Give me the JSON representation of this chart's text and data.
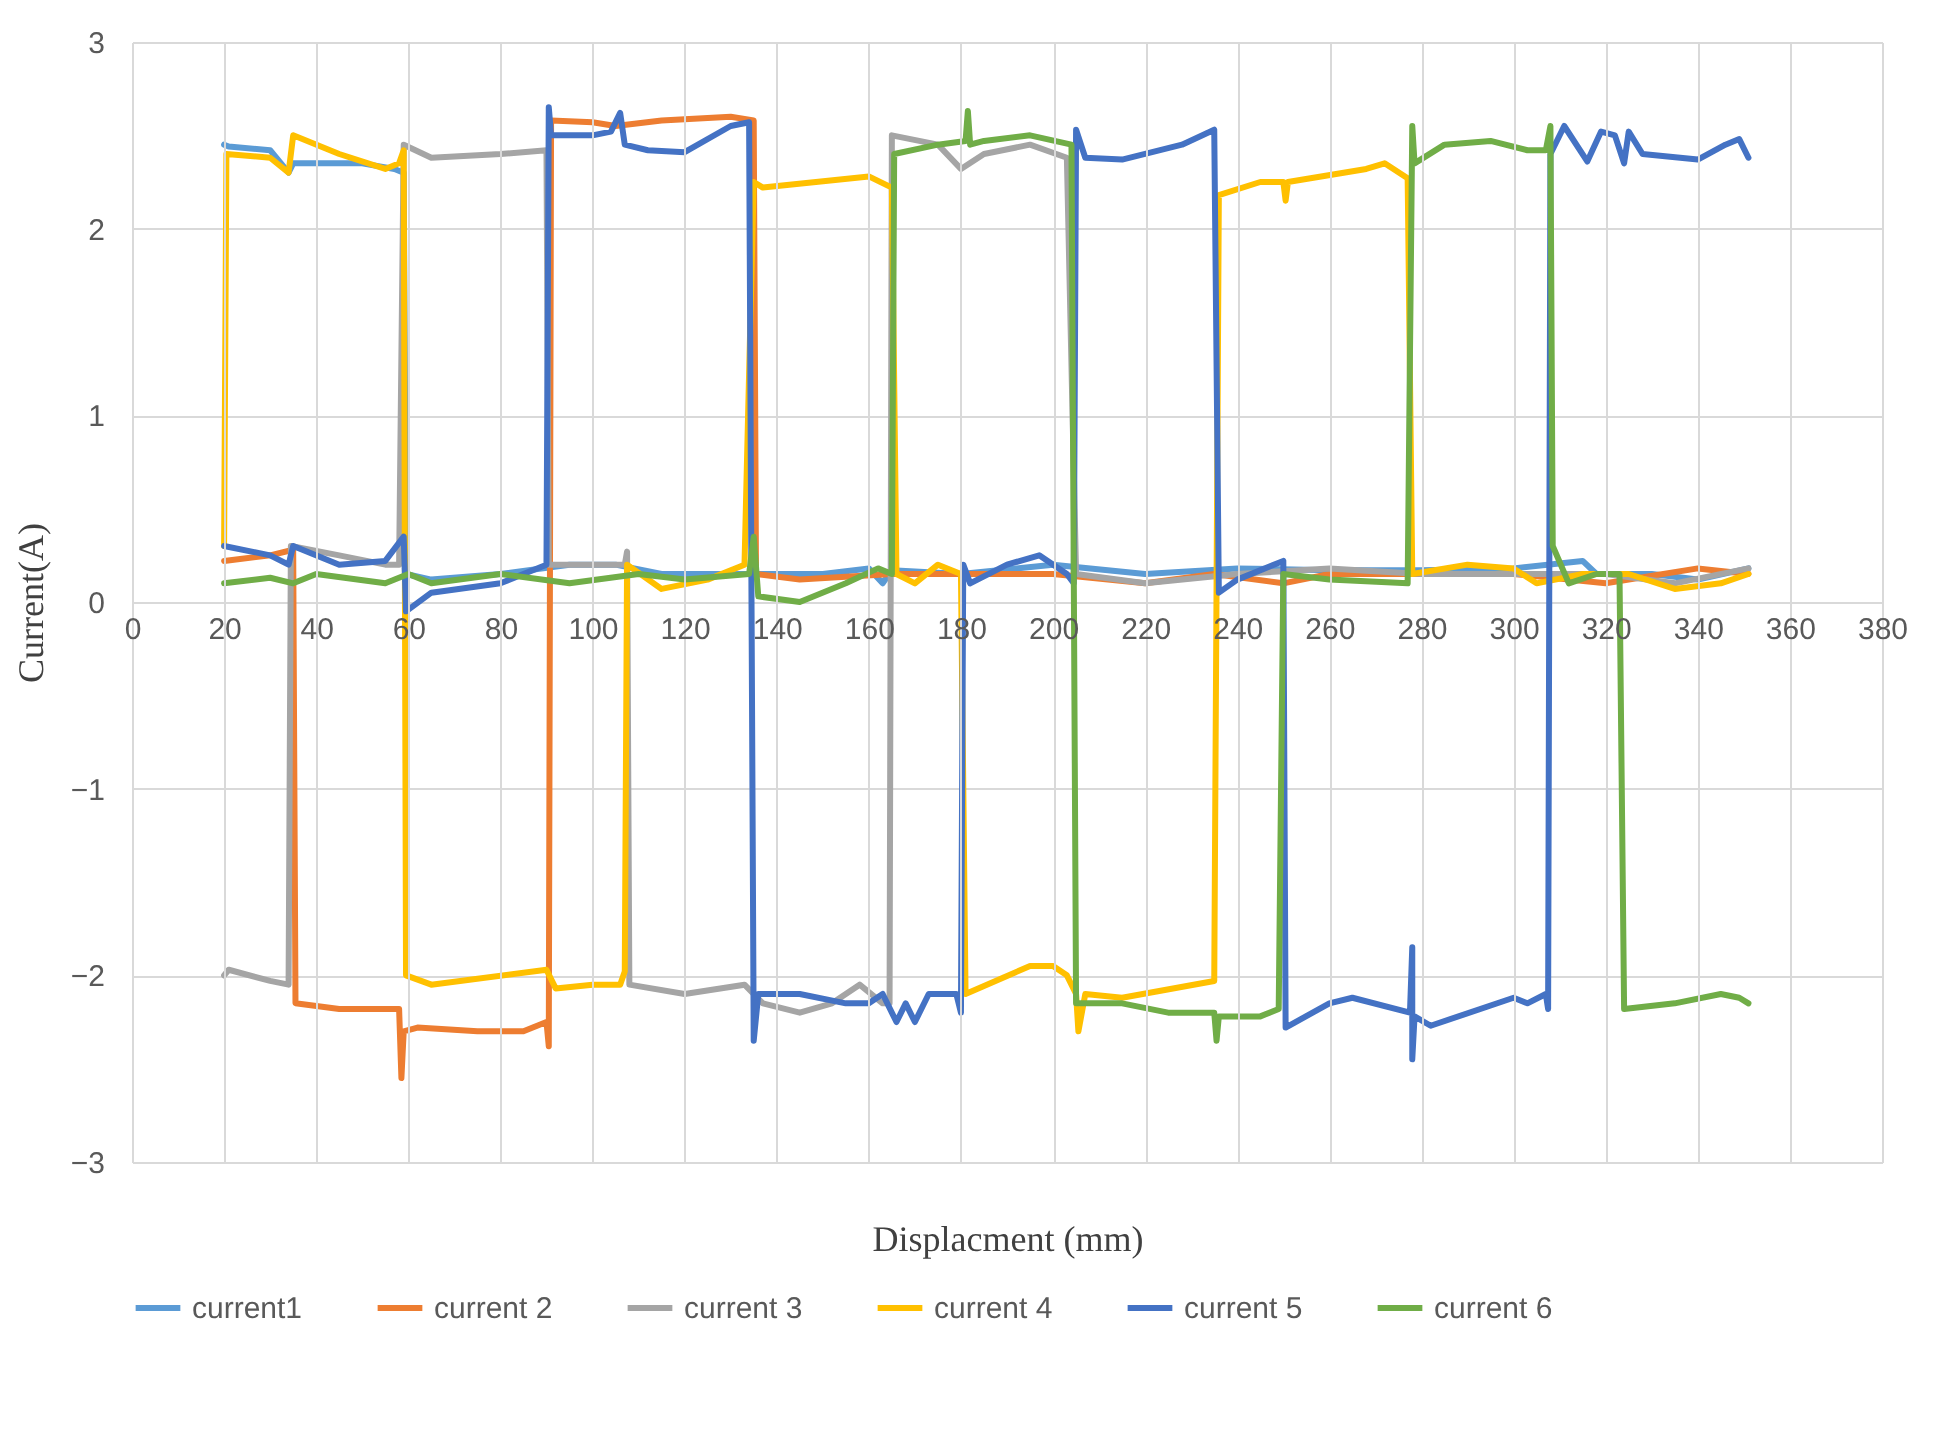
{
  "chart_data": {
    "type": "line",
    "xlabel": "Displacment (mm)",
    "ylabel": "Current(A)",
    "xlim": [
      0,
      380
    ],
    "xticks": [
      0,
      20,
      40,
      60,
      80,
      100,
      120,
      140,
      160,
      180,
      200,
      220,
      240,
      260,
      280,
      300,
      320,
      340,
      360,
      380
    ],
    "ylim": [
      -3,
      3
    ],
    "yticks": [
      -3,
      -2,
      -1,
      0,
      1,
      2,
      3
    ],
    "grid": true,
    "legend": "bottom",
    "series": [
      {
        "name": "current1",
        "color": "#5b9bd5",
        "x": [
          20,
          21,
          30,
          34,
          35,
          36,
          40,
          50,
          57,
          59,
          59.5,
          65,
          80,
          95,
          105,
          115,
          130,
          150,
          160,
          163,
          165,
          180,
          200,
          220,
          240,
          260,
          280,
          300,
          315,
          318,
          330,
          340,
          351
        ],
        "values": [
          2.45,
          2.44,
          2.42,
          2.3,
          2.35,
          2.35,
          2.35,
          2.35,
          2.32,
          2.3,
          0.15,
          0.12,
          0.15,
          0.2,
          0.2,
          0.15,
          0.15,
          0.15,
          0.18,
          0.1,
          0.17,
          0.15,
          0.2,
          0.15,
          0.18,
          0.17,
          0.17,
          0.18,
          0.22,
          0.15,
          0.15,
          0.12,
          0.18
        ]
      },
      {
        "name": "current 2",
        "color": "#ed7d31",
        "x": [
          20,
          30,
          35,
          35.5,
          45,
          58,
          58.5,
          59,
          62,
          75,
          85,
          90,
          90.5,
          91,
          100,
          105,
          115,
          130,
          135,
          135.5,
          145,
          165,
          180,
          200,
          220,
          235,
          250,
          260,
          280,
          300,
          320,
          340,
          351
        ],
        "values": [
          0.22,
          0.25,
          0.28,
          -2.15,
          -2.18,
          -2.18,
          -2.55,
          -2.3,
          -2.28,
          -2.3,
          -2.3,
          -2.25,
          -2.38,
          2.58,
          2.57,
          2.55,
          2.58,
          2.6,
          2.58,
          0.15,
          0.12,
          0.15,
          0.15,
          0.15,
          0.1,
          0.15,
          0.1,
          0.15,
          0.15,
          0.15,
          0.1,
          0.18,
          0.15
        ]
      },
      {
        "name": "current 3",
        "color": "#a5a5a5",
        "x": [
          20,
          21,
          30,
          34,
          34.5,
          45,
          55,
          58,
          59,
          65,
          80,
          90,
          90.5,
          100,
          107,
          107.5,
          108,
          120,
          133,
          137,
          145,
          152,
          158,
          163,
          164.5,
          165,
          175,
          180,
          185,
          195,
          203,
          205,
          220,
          240,
          260,
          280,
          300,
          320,
          335,
          351
        ],
        "values": [
          -2.0,
          -1.97,
          -2.03,
          -2.05,
          0.3,
          0.25,
          0.2,
          0.2,
          2.45,
          2.38,
          2.4,
          2.42,
          0.2,
          0.2,
          0.2,
          0.27,
          -2.05,
          -2.1,
          -2.05,
          -2.15,
          -2.2,
          -2.15,
          -2.05,
          -2.15,
          -2.15,
          2.5,
          2.45,
          2.32,
          2.4,
          2.45,
          2.38,
          0.15,
          0.1,
          0.15,
          0.18,
          0.15,
          0.15,
          0.15,
          0.1,
          0.18
        ]
      },
      {
        "name": "current 4",
        "color": "#ffc000",
        "x": [
          20,
          20.5,
          30,
          34,
          35,
          45,
          55,
          58,
          59,
          59.5,
          65,
          90,
          92,
          100,
          106,
          107,
          107.5,
          115,
          125,
          133,
          135,
          137,
          160,
          165,
          166,
          170,
          175,
          180,
          181,
          195,
          200,
          203,
          205,
          205.5,
          207,
          215,
          235,
          236,
          245,
          250,
          250.5,
          251,
          268,
          272,
          277,
          278,
          290,
          300,
          305,
          315,
          325,
          335,
          345,
          351
        ],
        "values": [
          0.3,
          2.4,
          2.38,
          2.3,
          2.5,
          2.4,
          2.32,
          2.35,
          2.42,
          -2.0,
          -2.05,
          -1.97,
          -2.07,
          -2.05,
          -2.05,
          -1.98,
          0.2,
          0.07,
          0.12,
          0.2,
          2.25,
          2.22,
          2.28,
          2.22,
          0.15,
          0.1,
          0.2,
          0.15,
          -2.1,
          -1.95,
          -1.95,
          -2.0,
          -2.1,
          -2.3,
          -2.1,
          -2.12,
          -2.03,
          2.18,
          2.25,
          2.25,
          2.15,
          2.25,
          2.32,
          2.35,
          2.27,
          0.15,
          0.2,
          0.18,
          0.1,
          0.15,
          0.15,
          0.07,
          0.1,
          0.15
        ]
      },
      {
        "name": "current 5",
        "color": "#4472c4",
        "x": [
          20,
          30,
          34,
          35,
          45,
          55,
          59,
          59.5,
          65,
          80,
          90,
          90.5,
          91,
          100,
          104,
          106,
          107,
          112,
          120,
          130,
          134,
          135,
          136,
          145,
          155,
          160,
          163,
          166,
          168,
          170,
          173,
          179,
          180,
          180.5,
          182,
          190,
          197,
          203,
          204.5,
          205,
          207,
          215,
          228,
          235,
          236,
          240,
          250,
          250.5,
          260,
          265,
          277.5,
          278,
          278,
          278.5,
          282,
          300,
          303,
          307,
          307.5,
          308,
          311,
          316,
          319,
          322,
          324,
          325,
          328,
          340,
          346,
          349,
          351
        ],
        "values": [
          0.3,
          0.25,
          0.2,
          0.3,
          0.2,
          0.22,
          0.35,
          -0.05,
          0.05,
          0.1,
          0.2,
          2.65,
          2.5,
          2.5,
          2.52,
          2.62,
          2.45,
          2.42,
          2.41,
          2.55,
          2.57,
          -2.35,
          -2.1,
          -2.1,
          -2.15,
          -2.15,
          -2.1,
          -2.25,
          -2.15,
          -2.25,
          -2.1,
          -2.1,
          -2.2,
          0.2,
          0.1,
          0.2,
          0.25,
          0.15,
          0.1,
          2.53,
          2.38,
          2.37,
          2.45,
          2.53,
          0.05,
          0.12,
          0.22,
          -2.28,
          -2.15,
          -2.12,
          -2.2,
          -1.85,
          -2.45,
          -2.22,
          -2.27,
          -2.12,
          -2.15,
          -2.1,
          -2.18,
          2.4,
          2.55,
          2.36,
          2.52,
          2.5,
          2.35,
          2.52,
          2.4,
          2.37,
          2.45,
          2.48,
          2.38
        ]
      },
      {
        "name": "current 6",
        "color": "#70ad47",
        "x": [
          20,
          30,
          35,
          40,
          55,
          60,
          65,
          80,
          95,
          110,
          120,
          134,
          135,
          136,
          145,
          155,
          162,
          165,
          165.5,
          175,
          181,
          181.5,
          182,
          185,
          195,
          204,
          205,
          215,
          225,
          235,
          235.5,
          236,
          245,
          249,
          250,
          260,
          277,
          278,
          278.5,
          285,
          295,
          303,
          307,
          308,
          308.5,
          312,
          318,
          323,
          324,
          335,
          345,
          349,
          351
        ],
        "values": [
          0.1,
          0.13,
          0.1,
          0.15,
          0.1,
          0.15,
          0.1,
          0.15,
          0.1,
          0.15,
          0.12,
          0.15,
          0.35,
          0.03,
          0.0,
          0.1,
          0.18,
          0.15,
          2.4,
          2.45,
          2.47,
          2.63,
          2.45,
          2.47,
          2.5,
          2.45,
          -2.15,
          -2.15,
          -2.2,
          -2.2,
          -2.35,
          -2.22,
          -2.22,
          -2.18,
          0.15,
          0.12,
          0.1,
          2.55,
          2.35,
          2.45,
          2.47,
          2.42,
          2.42,
          2.55,
          0.3,
          0.1,
          0.15,
          0.15,
          -2.18,
          -2.15,
          -2.1,
          -2.12,
          -2.15
        ]
      }
    ]
  }
}
